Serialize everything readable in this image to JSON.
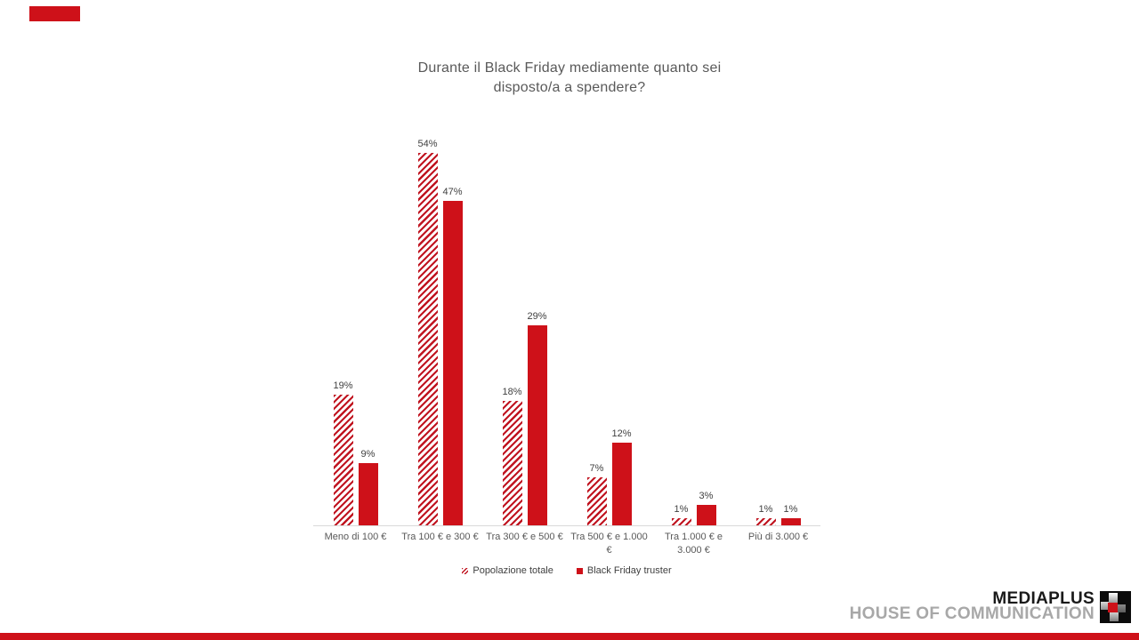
{
  "title": {
    "line1": "Durante il Black Friday mediamente quanto sei",
    "line2": "disposto/a a spendere?"
  },
  "chart_data": {
    "type": "bar",
    "title": "Durante il Black Friday mediamente quanto sei disposto/a a spendere?",
    "categories": [
      "Meno di 100 €",
      "Tra 100 € e 300 €",
      "Tra 300 € e 500 €",
      "Tra 500 € e 1.000 €",
      "Tra 1.000 € e 3.000 €",
      "Più di 3.000 €"
    ],
    "series": [
      {
        "name": "Popolazione totale",
        "style": "striped",
        "values": [
          19,
          54,
          18,
          7,
          1,
          1
        ]
      },
      {
        "name": "Black Friday truster",
        "style": "solid",
        "values": [
          9,
          47,
          29,
          12,
          3,
          1
        ]
      }
    ],
    "value_suffix": "%",
    "ylim": [
      0,
      60
    ],
    "grid": false,
    "legend_position": "bottom",
    "data_labels": true
  },
  "branding": {
    "brand_name": "MEDIAPLUS",
    "brand_tagline": "HOUSE OF COMMUNICATION"
  },
  "colors": {
    "solid_red": "#CE1119",
    "stripe_red": "#C01420",
    "accent_red": "#CE1119",
    "title_gray": "#595959",
    "label_gray": "#404040",
    "axis_gray": "#D9D9D9",
    "tagline_gray": "#A8A8A8",
    "brand_black": "#1A1A1A"
  }
}
